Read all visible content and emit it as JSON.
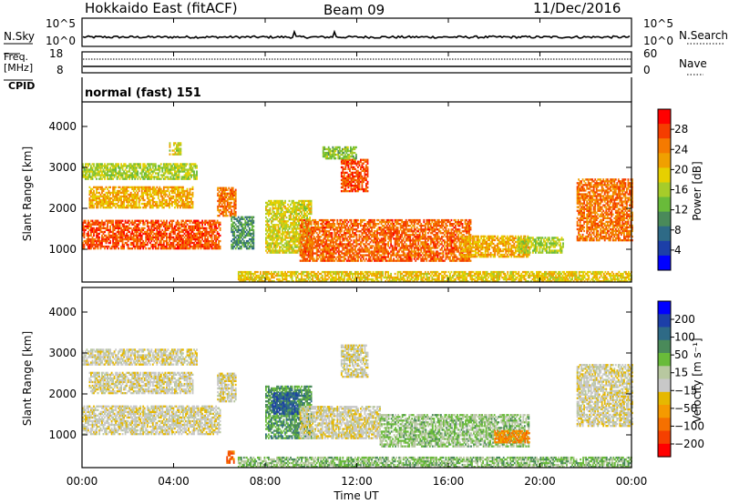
{
  "header": {
    "station": "Hokkaido East (fitACF)",
    "beam": "Beam 09",
    "date": "11/Dec/2016"
  },
  "nsky_panel": {
    "label": "N.Sky",
    "left_ticks": [
      "10^5",
      "10^0"
    ],
    "right_ticks": [
      "10^5",
      "10^0"
    ],
    "right_label": "N.Search"
  },
  "freq_panel": {
    "label_line1": "Freq.",
    "label_line2": "[MHz]",
    "left_ticks": [
      "18",
      "8"
    ],
    "right_ticks": [
      "60",
      "0"
    ],
    "right_label": "Nave",
    "cpid_label": "CPID"
  },
  "cpid_panel": {
    "text": "normal (fast) 151"
  },
  "colors": {
    "power": [
      "#0000ff",
      "#1c3fa8",
      "#2e6a86",
      "#4a8a5a",
      "#69bb3a",
      "#a6cc2a",
      "#e6d000",
      "#f0a000",
      "#f57a00",
      "#f53d00",
      "#ff0000"
    ],
    "velocity": [
      "#0000ff",
      "#1c3fa8",
      "#2e6a86",
      "#4a8a5a",
      "#69bb3a",
      "#b8c8a0",
      "#c8c8c8",
      "#e6b800",
      "#f59a00",
      "#f57000",
      "#f54000",
      "#ff0000"
    ]
  },
  "chart_data": [
    {
      "type": "heatmap",
      "name": "power",
      "ylabel": "Slant Range [km]",
      "yticks": [
        1000,
        2000,
        3000,
        4000
      ],
      "ylim": [
        200,
        4600
      ],
      "xlim": [
        0,
        24
      ],
      "colorbar_label": "Power [dB]",
      "colorbar_ticks": [
        4,
        8,
        12,
        16,
        20,
        24,
        28
      ],
      "colorbar_range": [
        0,
        32
      ],
      "features": [
        {
          "t0": 0.0,
          "t1": 6.0,
          "r0": 1000,
          "r1": 1700,
          "value": 28
        },
        {
          "t0": 0.3,
          "t1": 4.8,
          "r0": 2000,
          "r1": 2500,
          "value": 22
        },
        {
          "t0": 0.0,
          "t1": 5.0,
          "r0": 2700,
          "r1": 3100,
          "value": 16
        },
        {
          "t0": 3.8,
          "t1": 4.3,
          "r0": 3300,
          "r1": 3600,
          "value": 18
        },
        {
          "t0": 5.9,
          "t1": 6.7,
          "r0": 1800,
          "r1": 2500,
          "value": 26
        },
        {
          "t0": 6.5,
          "t1": 7.5,
          "r0": 1000,
          "r1": 1800,
          "value": 10
        },
        {
          "t0": 8.0,
          "t1": 10.0,
          "r0": 900,
          "r1": 2200,
          "value": 18
        },
        {
          "t0": 11.3,
          "t1": 12.5,
          "r0": 2400,
          "r1": 3200,
          "value": 28
        },
        {
          "t0": 10.5,
          "t1": 12.0,
          "r0": 3200,
          "r1": 3500,
          "value": 14
        },
        {
          "t0": 9.5,
          "t1": 17.0,
          "r0": 700,
          "r1": 1700,
          "value": 27
        },
        {
          "t0": 16.5,
          "t1": 19.5,
          "r0": 800,
          "r1": 1300,
          "value": 22
        },
        {
          "t0": 19.0,
          "t1": 21.0,
          "r0": 900,
          "r1": 1300,
          "value": 16
        },
        {
          "t0": 21.6,
          "t1": 24.0,
          "r0": 1200,
          "r1": 2700,
          "value": 26
        },
        {
          "t0": 6.8,
          "t1": 24.0,
          "r0": 200,
          "r1": 450,
          "value": 20
        }
      ]
    },
    {
      "type": "heatmap",
      "name": "velocity",
      "xlabel": "Time UT",
      "ylabel": "Slant Range [km]",
      "yticks": [
        1000,
        2000,
        3000,
        4000
      ],
      "ylim": [
        200,
        4600
      ],
      "xlim": [
        0,
        24
      ],
      "xticks": [
        "00:00",
        "04:00",
        "08:00",
        "12:00",
        "16:00",
        "20:00",
        "00:00"
      ],
      "colorbar_label": "Velocity [m s⁻¹]",
      "colorbar_ticks": [
        "200",
        "100",
        "50",
        "15",
        "−15",
        "−50",
        "−100",
        "−200"
      ],
      "features": [
        {
          "t0": 0.0,
          "t1": 6.0,
          "r0": 1000,
          "r1": 1700,
          "value": 0
        },
        {
          "t0": 0.3,
          "t1": 4.8,
          "r0": 2000,
          "r1": 2500,
          "value": 0
        },
        {
          "t0": 0.0,
          "t1": 5.0,
          "r0": 2700,
          "r1": 3100,
          "value": 0
        },
        {
          "t0": 5.9,
          "t1": 6.7,
          "r0": 1800,
          "r1": 2500,
          "value": 0
        },
        {
          "t0": 8.0,
          "t1": 10.0,
          "r0": 900,
          "r1": 2200,
          "value": 70
        },
        {
          "t0": 8.3,
          "t1": 9.4,
          "r0": 1500,
          "r1": 2000,
          "value": 120
        },
        {
          "t0": 11.3,
          "t1": 12.5,
          "r0": 2400,
          "r1": 3200,
          "value": 0
        },
        {
          "t0": 9.5,
          "t1": 13.0,
          "r0": 900,
          "r1": 1700,
          "value": 0
        },
        {
          "t0": 13.0,
          "t1": 19.5,
          "r0": 700,
          "r1": 1500,
          "value": 40
        },
        {
          "t0": 18.0,
          "t1": 19.5,
          "r0": 800,
          "r1": 1100,
          "value": -60
        },
        {
          "t0": 21.6,
          "t1": 24.0,
          "r0": 1200,
          "r1": 2700,
          "value": 0
        },
        {
          "t0": 6.8,
          "t1": 24.0,
          "r0": 200,
          "r1": 450,
          "value": 45
        },
        {
          "t0": 6.3,
          "t1": 6.6,
          "r0": 300,
          "r1": 600,
          "value": -80
        }
      ]
    }
  ]
}
